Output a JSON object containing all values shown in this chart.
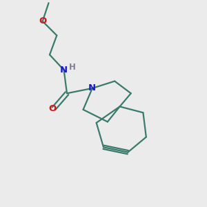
{
  "bg_color": "#ebebeb",
  "bond_color": "#3a7a6a",
  "N_color": "#1a1acc",
  "O_color": "#cc1a1a",
  "H_color": "#808090",
  "line_width": 1.6,
  "font_size": 9.5,
  "figsize": [
    3.0,
    3.0
  ],
  "dpi": 100,
  "xlim": [
    0,
    10
  ],
  "ylim": [
    0,
    10
  ]
}
